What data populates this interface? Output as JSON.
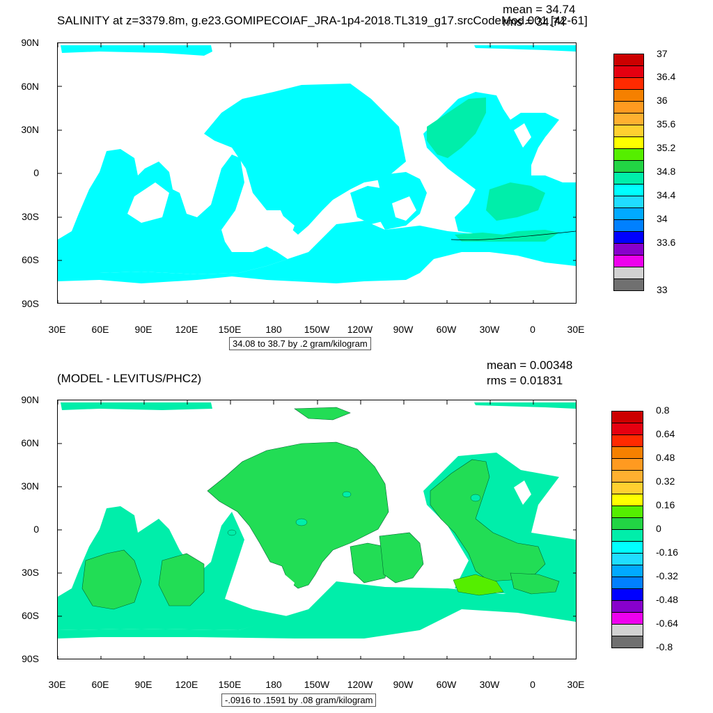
{
  "panels": [
    {
      "id": "top",
      "title": "SALINITY at z=3379.8m, g.e23.GOMIPECOIAF_JRA-1p4-2018.TL319_g17.srcCodeMod.001 [42-61]",
      "mean_label": "mean = 34.74",
      "rms_label": "rms = 34.74",
      "y_ticks": [
        "90N",
        "60N",
        "30N",
        "0",
        "30S",
        "60S",
        "90S"
      ],
      "x_ticks": [
        "30E",
        "60E",
        "90E",
        "120E",
        "150E",
        "180",
        "150W",
        "120W",
        "90W",
        "60W",
        "30W",
        "0",
        "30E"
      ],
      "range_label": "34.08 to 38.7 by .2 gram/kilogram",
      "ocean_color": "#00ffff",
      "colorbar": {
        "colors": [
          "#cc0000",
          "#e50010",
          "#ff2a00",
          "#f58000",
          "#ff9a20",
          "#ffb030",
          "#ffd030",
          "#ffff00",
          "#55ee00",
          "#22d444",
          "#00eeaa",
          "#00ffff",
          "#20ddff",
          "#00aaff",
          "#0080ff",
          "#0000ff",
          "#8800cc",
          "#ee00ee",
          "#d2d2d2",
          "#707070"
        ],
        "labels": [
          "37",
          "36.4",
          "36",
          "35.6",
          "35.2",
          "34.8",
          "34.4",
          "34",
          "33.6",
          "33"
        ]
      }
    },
    {
      "id": "bottom",
      "title": "(MODEL - LEVITUS/PHC2)",
      "mean_label": "mean = 0.00348",
      "rms_label": "rms = 0.01831",
      "y_ticks": [
        "90N",
        "60N",
        "30N",
        "0",
        "30S",
        "60S",
        "90S"
      ],
      "x_ticks": [
        "30E",
        "60E",
        "90E",
        "120E",
        "150E",
        "180",
        "150W",
        "120W",
        "90W",
        "60W",
        "30W",
        "0",
        "30E"
      ],
      "range_label": "-.0916 to .1591 by .08 gram/kilogram",
      "ocean_color": "#00ffff",
      "anomaly_color": "#22dd55",
      "colorbar": {
        "colors": [
          "#cc0000",
          "#e50010",
          "#ff2a00",
          "#f58000",
          "#ff9a20",
          "#ffb030",
          "#ffd030",
          "#ffff00",
          "#55ee00",
          "#22d444",
          "#00eeaa",
          "#00ffff",
          "#20ddff",
          "#00aaff",
          "#0080ff",
          "#0000ff",
          "#8800cc",
          "#ee00ee",
          "#d2d2d2",
          "#707070"
        ],
        "labels": [
          "0.8",
          "0.64",
          "0.48",
          "0.32",
          "0.16",
          "0",
          "-0.16",
          "-0.32",
          "-0.48",
          "-0.64",
          "-0.8"
        ]
      }
    }
  ]
}
